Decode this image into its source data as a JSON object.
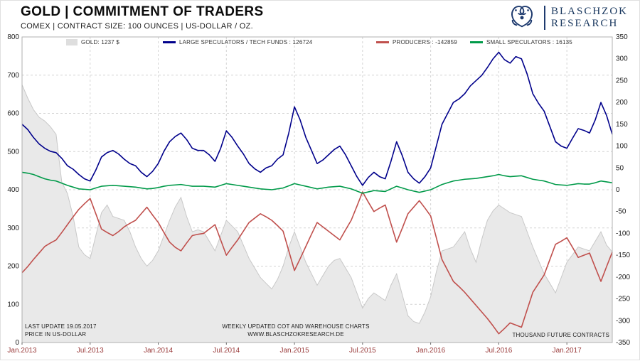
{
  "header": {
    "title": "GOLD | COMMITMENT OF TRADERS",
    "subtitle": "COMEX | CONTRACT SIZE: 100 OUNCES | US-DOLLAR / OZ.",
    "logo": {
      "line1": "BLASCHZOK",
      "line2": "RESEARCH",
      "color": "#1e3a6e"
    }
  },
  "legend": [
    {
      "id": "gold",
      "label": "GOLD: 1237 $",
      "color": "#dedede",
      "type": "area"
    },
    {
      "id": "large_speculators",
      "label": "LARGE SPECULATORS / TECH FUNDS : 126724",
      "color": "#00008b",
      "type": "line"
    },
    {
      "id": "producers",
      "label": "PRODUCERS : -142859",
      "color": "#c0504d",
      "type": "line"
    },
    {
      "id": "small_speculators",
      "label": "SMALL SPECULATORS : 16135",
      "color": "#009a49",
      "type": "line"
    }
  ],
  "annotations": {
    "last_update": "LAST UPDATE 19.05.2017",
    "price_unit": "PRICE IN US-DOLLAR",
    "center_line1": "WEEKLY UPDATED COT AND WAREHOUSE CHARTS",
    "center_line2": "WWW.BLASCHZOKRESEARCH.DE",
    "right_unit": "THOUSAND FUTURE CONTRACTS"
  },
  "chart_data": {
    "type": "line",
    "title": "GOLD | COMMITMENT OF TRADERS",
    "xlabel": "",
    "ylabel_left": "PRICE IN US-DOLLAR",
    "ylabel_right": "THOUSAND FUTURE CONTRACTS",
    "grid": true,
    "legend_position": "top",
    "x_start": 2013.0,
    "x_step_years": 0.0416667,
    "x_ticks": [
      {
        "label": "Jan.2013",
        "t": 2013.0
      },
      {
        "label": "Jul.2013",
        "t": 2013.5
      },
      {
        "label": "Jan.2014",
        "t": 2014.0
      },
      {
        "label": "Jul.2014",
        "t": 2014.5
      },
      {
        "label": "Jan.2015",
        "t": 2015.0
      },
      {
        "label": "Jul.2015",
        "t": 2015.5
      },
      {
        "label": "Jan.2016",
        "t": 2016.0
      },
      {
        "label": "Jul.2016",
        "t": 2016.5
      },
      {
        "label": "Jan.2017",
        "t": 2017.0
      }
    ],
    "left_axis": {
      "min": 0,
      "max": 800,
      "step": 100,
      "ticks": [
        0,
        100,
        200,
        300,
        400,
        500,
        600,
        700,
        800
      ]
    },
    "right_axis": {
      "min": -350,
      "max": 350,
      "step": 50,
      "ticks": [
        -350,
        -300,
        -250,
        -200,
        -150,
        -100,
        -50,
        0,
        50,
        100,
        150,
        200,
        250,
        300,
        350
      ]
    },
    "series": [
      {
        "name": "GOLD",
        "axis": "left",
        "style": "area",
        "current_value": "1237 $",
        "color_fill": "#e9e9e9",
        "color_stroke": "#c8c8c8",
        "values": [
          675,
          640,
          610,
          590,
          580,
          565,
          545,
          420,
          390,
          330,
          250,
          230,
          220,
          280,
          340,
          360,
          330,
          325,
          320,
          290,
          250,
          220,
          200,
          215,
          240,
          280,
          320,
          355,
          380,
          330,
          290,
          295,
          290,
          265,
          240,
          280,
          320,
          305,
          290,
          255,
          220,
          195,
          170,
          155,
          140,
          165,
          200,
          250,
          290,
          250,
          210,
          180,
          150,
          175,
          200,
          215,
          220,
          195,
          170,
          130,
          90,
          115,
          130,
          120,
          110,
          150,
          180,
          125,
          70,
          55,
          50,
          80,
          120,
          185,
          240,
          245,
          250,
          270,
          290,
          245,
          210,
          270,
          320,
          345,
          360,
          350,
          340,
          335,
          330,
          290,
          250,
          215,
          180,
          155,
          130,
          170,
          210,
          230,
          250,
          245,
          240,
          265,
          290,
          255,
          237
        ]
      },
      {
        "name": "LARGE SPECULATORS / TECH FUNDS",
        "axis": "right",
        "style": "line",
        "current_value": 126724,
        "color": "#00008b",
        "values": [
          150,
          138,
          120,
          105,
          95,
          88,
          85,
          72,
          55,
          47,
          35,
          25,
          20,
          45,
          75,
          85,
          90,
          82,
          70,
          60,
          55,
          40,
          30,
          42,
          60,
          88,
          110,
          122,
          130,
          115,
          95,
          90,
          90,
          80,
          65,
          95,
          135,
          120,
          100,
          82,
          60,
          48,
          40,
          50,
          55,
          70,
          80,
          130,
          190,
          160,
          120,
          90,
          60,
          68,
          80,
          92,
          100,
          80,
          55,
          30,
          10,
          28,
          40,
          30,
          25,
          65,
          110,
          78,
          40,
          25,
          15,
          30,
          50,
          100,
          150,
          175,
          200,
          208,
          220,
          238,
          250,
          262,
          280,
          300,
          315,
          298,
          290,
          305,
          300,
          265,
          220,
          198,
          180,
          145,
          110,
          100,
          95,
          118,
          140,
          136,
          130,
          160,
          200,
          170,
          127
        ]
      },
      {
        "name": "PRODUCERS",
        "axis": "right",
        "style": "line",
        "current_value": -142859,
        "color": "#c0504d",
        "values": [
          -190,
          -176,
          -160,
          -145,
          -130,
          -122,
          -115,
          -98,
          -80,
          -62,
          -45,
          -32,
          -20,
          -55,
          -90,
          -98,
          -105,
          -96,
          -85,
          -77,
          -70,
          -55,
          -40,
          -58,
          -75,
          -98,
          -120,
          -132,
          -140,
          -122,
          -105,
          -102,
          -100,
          -90,
          -80,
          -115,
          -150,
          -132,
          -115,
          -95,
          -75,
          -65,
          -55,
          -62,
          -70,
          -82,
          -95,
          -140,
          -185,
          -158,
          -130,
          -102,
          -75,
          -85,
          -95,
          -105,
          -115,
          -92,
          -70,
          -38,
          -5,
          -28,
          -50,
          -42,
          -35,
          -78,
          -120,
          -88,
          -55,
          -40,
          -25,
          -42,
          -60,
          -110,
          -160,
          -185,
          -210,
          -222,
          -235,
          -250,
          -265,
          -280,
          -295,
          -312,
          -330,
          -318,
          -305,
          -310,
          -315,
          -275,
          -235,
          -215,
          -195,
          -160,
          -125,
          -118,
          -110,
          -132,
          -155,
          -150,
          -145,
          -178,
          -210,
          -176,
          -143
        ]
      },
      {
        "name": "SMALL SPECULATORS",
        "axis": "right",
        "style": "line",
        "current_value": 16135,
        "color": "#009a49",
        "values": [
          40,
          38,
          35,
          30,
          25,
          22,
          20,
          15,
          10,
          6,
          2,
          1,
          0,
          4,
          8,
          9,
          10,
          9,
          8,
          7,
          6,
          4,
          2,
          3,
          5,
          8,
          10,
          11,
          12,
          10,
          8,
          8,
          8,
          7,
          6,
          10,
          14,
          12,
          10,
          8,
          6,
          4,
          2,
          1,
          0,
          2,
          4,
          9,
          14,
          11,
          8,
          5,
          2,
          4,
          6,
          7,
          8,
          5,
          2,
          -3,
          -8,
          -5,
          -2,
          -3,
          -4,
          2,
          8,
          4,
          0,
          -3,
          -6,
          -3,
          0,
          6,
          12,
          16,
          20,
          22,
          24,
          25,
          26,
          28,
          30,
          32,
          35,
          32,
          30,
          31,
          32,
          28,
          24,
          22,
          20,
          16,
          12,
          11,
          10,
          12,
          14,
          13,
          13,
          16,
          20,
          18,
          16
        ]
      }
    ]
  }
}
